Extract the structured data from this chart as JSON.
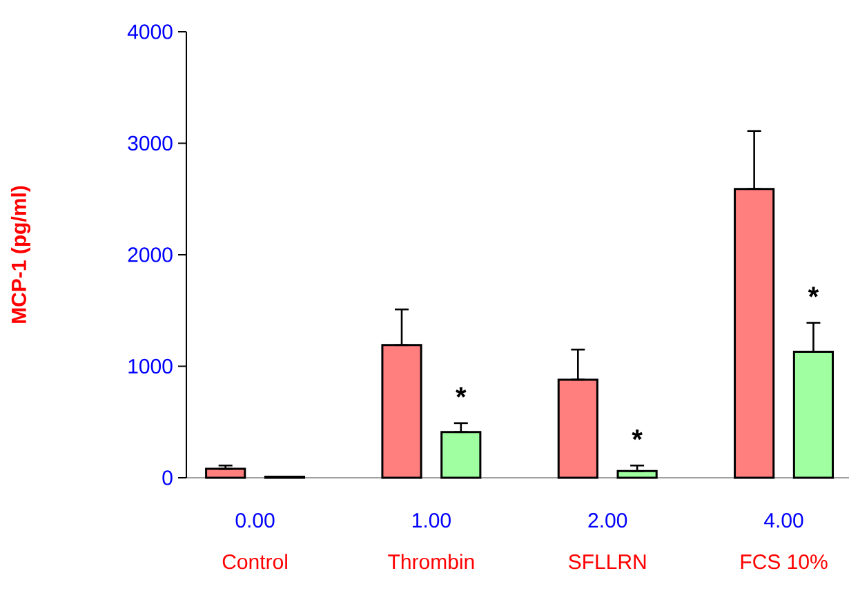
{
  "chart_data": {
    "type": "bar",
    "ylabel": "MCP-1  (pg/ml)",
    "categories": [
      "0.00",
      "1.00",
      "2.00",
      "4.00"
    ],
    "series": [
      {
        "color": "#ff7f7f",
        "values": [
          80,
          1190,
          880,
          2590
        ],
        "errors": [
          [
            80,
            110
          ],
          [
            1190,
            1510
          ],
          [
            880,
            1150
          ],
          [
            2590,
            3110
          ]
        ]
      },
      {
        "color": "#a0ffa0",
        "values": [
          10,
          410,
          60,
          1130
        ],
        "errors": [
          null,
          [
            410,
            490
          ],
          [
            60,
            110
          ],
          [
            1130,
            1390
          ]
        ]
      }
    ],
    "ylim": [
      0,
      4000
    ],
    "yticks": [
      0,
      1000,
      2000,
      3000,
      4000
    ],
    "grid": false,
    "annotations": [
      "Control",
      "Thrombin",
      "SFLLRN",
      "FCS 10%",
      "*",
      "*",
      "*"
    ]
  }
}
